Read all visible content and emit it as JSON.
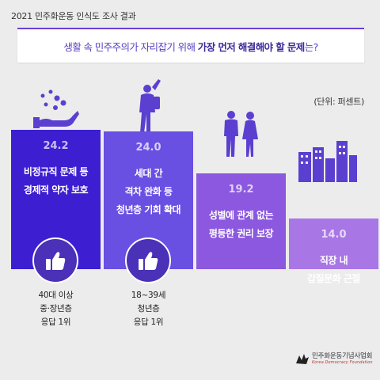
{
  "header": {
    "survey_title": "2021 민주화운동 인식도 조사 결과"
  },
  "question": {
    "prefix": "생활 속 민주주의가 자리잡기 위해 ",
    "emphasis": "가장 먼저 해결해야 할 문제",
    "suffix": "는?"
  },
  "unit": "(단위: 퍼센트)",
  "chart_data": {
    "type": "bar",
    "categories": [
      "비정규직 문제 등 경제적 약자 보호",
      "세대 간 격차 완화 등 청년층 기회 확대",
      "성별에 관계 없는 평등한 권리 보장",
      "직장 내 갑질문화 근절"
    ],
    "values": [
      24.2,
      24.0,
      19.2,
      14.0
    ],
    "value_labels": [
      "24.2",
      "24.0",
      "19.2",
      "14.0"
    ],
    "bar_label_lines": [
      [
        "비정규직 문제 등",
        "경제적 약자 보호"
      ],
      [
        "세대 간",
        "격차 완화 등",
        "청년층 기회 확대"
      ],
      [
        "성별에 관계 없는",
        "평등한 권리 보장"
      ],
      [
        "직장 내",
        "갑질문화 근절"
      ]
    ],
    "bar_colors": [
      "#3d1fd1",
      "#6a4fe3",
      "#8b58df",
      "#a976e6"
    ],
    "unit": "퍼센트",
    "ylim": [
      0,
      24.2
    ],
    "legend": "none",
    "grid": false
  },
  "annotations": [
    {
      "lines": [
        "40대 이상",
        "중·장년층",
        "응답 1위"
      ],
      "icon": "thumbs-up-icon"
    },
    {
      "lines": [
        "18~39세",
        "청년층",
        "응답 1위"
      ],
      "icon": "thumbs-up-icon"
    }
  ],
  "icons": [
    "hand-coins-icon",
    "person-raising-arm-icon",
    "couple-icon",
    "city-buildings-icon"
  ],
  "logo": {
    "name": "민주화운동기념사업회",
    "sub": "Korea Democracy Foundation"
  }
}
